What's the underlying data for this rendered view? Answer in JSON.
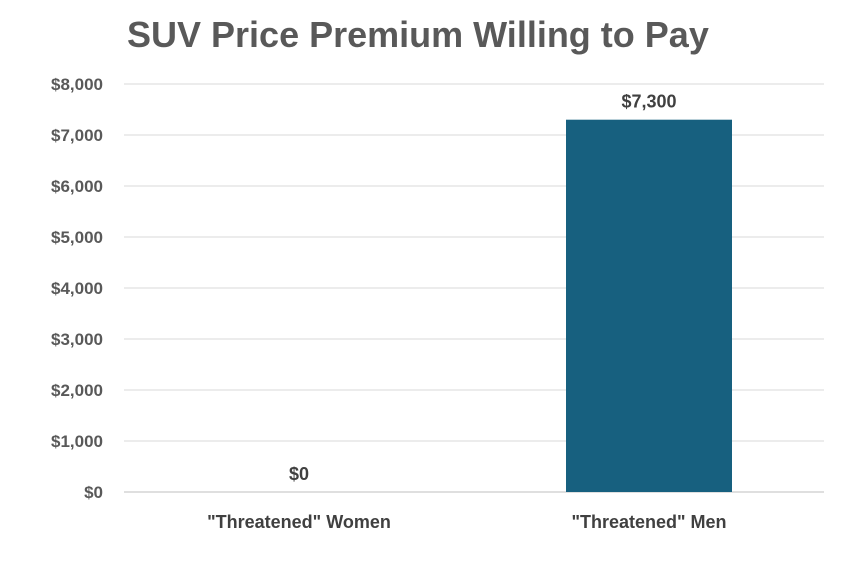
{
  "chart_data": {
    "type": "bar",
    "title": "SUV Price Premium Willing to Pay",
    "categories": [
      "\"Threatened\" Women",
      "\"Threatened\" Men"
    ],
    "values": [
      0,
      7300
    ],
    "data_labels": [
      "$0",
      "$7,300"
    ],
    "y_ticks": [
      "$0",
      "$1,000",
      "$2,000",
      "$3,000",
      "$4,000",
      "$5,000",
      "$6,000",
      "$7,000",
      "$8,000"
    ],
    "ylim": [
      0,
      8000
    ],
    "grid": true,
    "legend": "none",
    "bar_color": "#17607f"
  }
}
